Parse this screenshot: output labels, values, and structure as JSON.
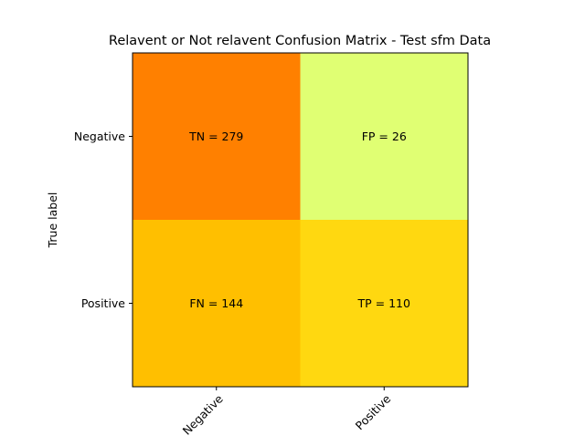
{
  "chart_data": {
    "type": "heatmap",
    "title": "Relavent or Not relavent Confusion Matrix - Test sfm Data",
    "ylabel": "True label",
    "xlabel": "",
    "x_tick_labels": [
      "Negative",
      "Positive"
    ],
    "y_tick_labels": [
      "Negative",
      "Positive"
    ],
    "cells": [
      [
        {
          "label": "TN = 279",
          "value": 279,
          "color": "#ff8000"
        },
        {
          "label": "FP = 26",
          "value": 26,
          "color": "#e0ff73"
        }
      ],
      [
        {
          "label": "FN = 144",
          "value": 144,
          "color": "#ffbf00"
        },
        {
          "label": "TP = 110",
          "value": 110,
          "color": "#ffd810"
        }
      ]
    ],
    "colormap": "Wistia",
    "grid": false,
    "legend": "none"
  }
}
